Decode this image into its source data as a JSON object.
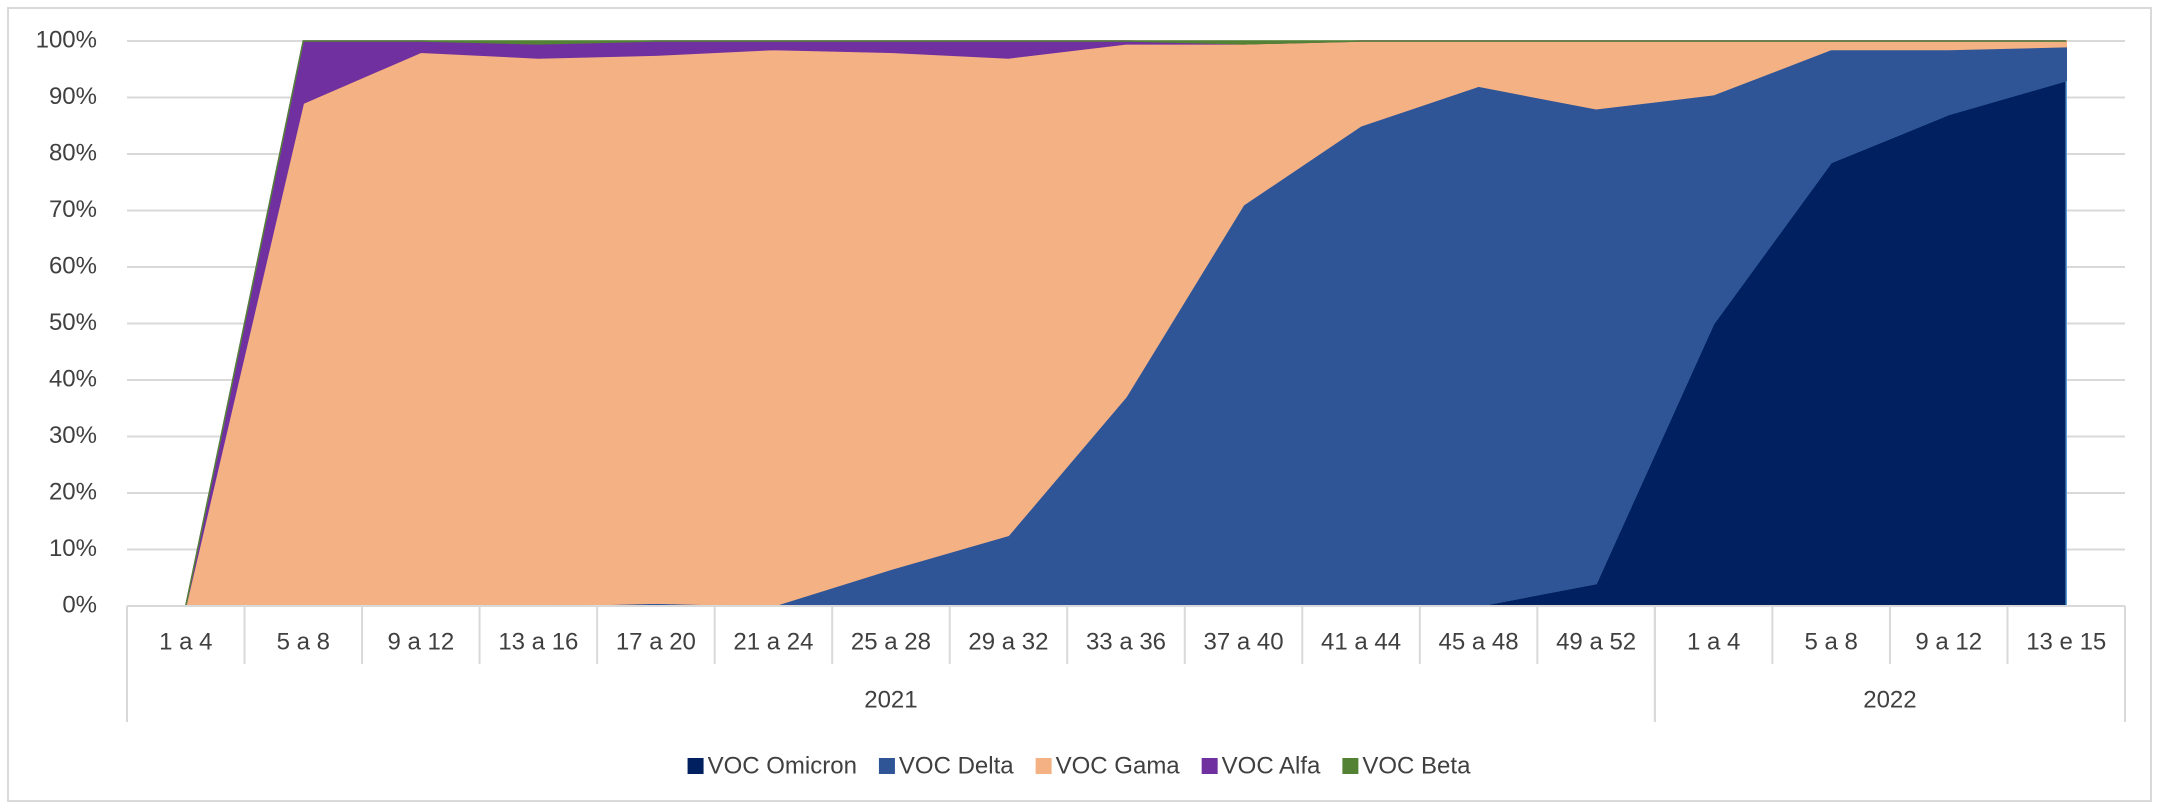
{
  "chart_data": {
    "type": "stacked_area",
    "categories": [
      "1 a 4",
      "5 a 8",
      "9 a 12",
      "13 a 16",
      "17 a 20",
      "21 a 24",
      "25 a 28",
      "29 a 32",
      "33 a 36",
      "37 a 40",
      "41 a 44",
      "45 a 48",
      "49 a 52",
      "1 a 4",
      "5 a 8",
      "9 a 12",
      "13 e 15"
    ],
    "groups": [
      {
        "label": "2021",
        "span": 13
      },
      {
        "label": "2022",
        "span": 4
      }
    ],
    "series": [
      {
        "name": "VOC Omicron",
        "color": "#002060",
        "values": [
          0,
          0,
          0,
          0,
          0,
          0,
          0,
          0,
          0,
          0,
          0,
          0,
          4,
          50,
          78.5,
          87,
          93
        ]
      },
      {
        "name": "VOC Delta",
        "color": "#2f5597",
        "values": [
          0,
          0,
          0,
          0,
          0.5,
          0,
          6.5,
          12.5,
          37,
          71,
          85,
          92,
          84,
          40.5,
          20,
          11.5,
          6
        ]
      },
      {
        "name": "VOC Gama",
        "color": "#f4b183",
        "values": [
          0,
          89,
          98,
          97,
          97,
          98.5,
          91.5,
          84.5,
          62.5,
          28.5,
          15,
          8,
          12,
          9.5,
          1.5,
          1.5,
          1
        ]
      },
      {
        "name": "VOC Alfa",
        "color": "#7030a0",
        "values": [
          0,
          11,
          2,
          2.5,
          2.5,
          1.5,
          2,
          3,
          0.5,
          0,
          0,
          0,
          0,
          0,
          0,
          0,
          0
        ]
      },
      {
        "name": "VOC Beta",
        "color": "#548235",
        "values": [
          0,
          0,
          0,
          0.5,
          0,
          0,
          0,
          0,
          0,
          0.5,
          0,
          0,
          0,
          0,
          0,
          0,
          0
        ]
      }
    ],
    "ylim": [
      0,
      100
    ],
    "yticks": [
      {
        "value": 0,
        "label": "0%"
      },
      {
        "value": 10,
        "label": "10%"
      },
      {
        "value": 20,
        "label": "20%"
      },
      {
        "value": 30,
        "label": "30%"
      },
      {
        "value": 40,
        "label": "40%"
      },
      {
        "value": 50,
        "label": "50%"
      },
      {
        "value": 60,
        "label": "60%"
      },
      {
        "value": 70,
        "label": "70%"
      },
      {
        "value": 80,
        "label": "80%"
      },
      {
        "value": 90,
        "label": "90%"
      },
      {
        "value": 100,
        "label": "100%"
      }
    ],
    "grid": true,
    "legend": "bottom"
  }
}
